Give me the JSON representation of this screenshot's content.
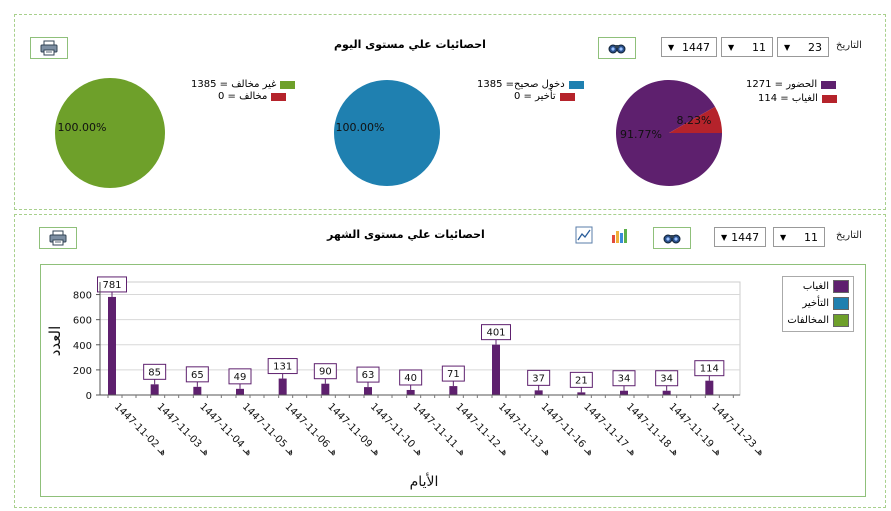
{
  "filters": {
    "date_label": "التاريخ",
    "day": "23",
    "month": "11",
    "year": "1447"
  },
  "day_section": {
    "title": "احصائيات علي مستوى اليوم",
    "pies": [
      {
        "legend": [
          {
            "label": "الحضور = 1271",
            "color": "#5e206e"
          },
          {
            "label": "الغياب = 114",
            "color": "#b5232b"
          }
        ],
        "slices": [
          {
            "value": 1271,
            "color": "#5e206e",
            "label": "91.77%"
          },
          {
            "value": 114,
            "color": "#b5232b",
            "label": "8.23%"
          }
        ]
      },
      {
        "legend": [
          {
            "label": "دخول صحيح= 1385",
            "color": "#1f80b0"
          },
          {
            "label": "تأخير = 0",
            "color": "#b5232b"
          }
        ],
        "slices": [
          {
            "value": 1385,
            "color": "#1f80b0",
            "label": "100.00%"
          }
        ]
      },
      {
        "legend": [
          {
            "label": "غير مخالف = 1385",
            "color": "#6ea02a"
          },
          {
            "label": "مخالف = 0",
            "color": "#b5232b"
          }
        ],
        "slices": [
          {
            "value": 1385,
            "color": "#6ea02a",
            "label": "100.00%"
          }
        ]
      }
    ]
  },
  "month_section": {
    "title": "احصائيات علي مستوى الشهر",
    "date_label": "التاريخ",
    "month": "11",
    "year": "1447"
  },
  "chart_data": {
    "type": "bar",
    "xlabel": "الأيام",
    "ylabel": "العدد",
    "ylim": [
      0,
      900
    ],
    "yticks": [
      0,
      200,
      400,
      600,
      800
    ],
    "grid": true,
    "legend_position": "top-right",
    "categories": [
      "1447-11-02 هـ",
      "1447-11-03 هـ",
      "1447-11-04 هـ",
      "1447-11-05 هـ",
      "1447-11-06 هـ",
      "1447-11-09 هـ",
      "1447-11-10 هـ",
      "1447-11-11 هـ",
      "1447-11-12 هـ",
      "1447-11-13 هـ",
      "1447-11-16 هـ",
      "1447-11-17 هـ",
      "1447-11-18 هـ",
      "1447-11-19 هـ",
      "1447-11-23 هـ"
    ],
    "series": [
      {
        "name": "الغياب",
        "color": "#5e206e",
        "values": [
          781,
          85,
          65,
          49,
          131,
          90,
          63,
          40,
          71,
          401,
          37,
          21,
          34,
          34,
          114
        ]
      },
      {
        "name": "التأخير",
        "color": "#1f80b0",
        "values": [
          0,
          0,
          0,
          0,
          0,
          0,
          0,
          0,
          0,
          0,
          0,
          0,
          0,
          0,
          0
        ]
      },
      {
        "name": "المخالفات",
        "color": "#6ea02a",
        "values": [
          0,
          0,
          0,
          0,
          0,
          0,
          0,
          0,
          0,
          0,
          0,
          0,
          0,
          0,
          0
        ]
      }
    ]
  }
}
